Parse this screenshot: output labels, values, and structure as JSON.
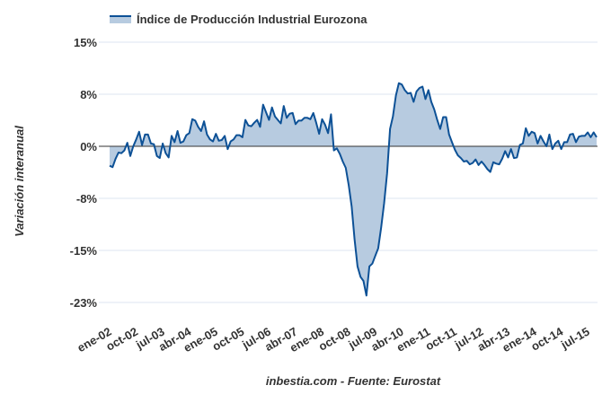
{
  "chart_data": {
    "type": "area",
    "title": "Índice de Producción Industrial Eurozona",
    "legend": [
      "Índice de Producción Industrial Eurozona"
    ],
    "legend_placement": "top-left",
    "ylabel": "Variación interanual",
    "xlabel": "",
    "footer": "inbestia.com - Fuente: Eurostat",
    "ylim": [
      -22.5,
      15
    ],
    "yticks": [
      {
        "value": 15,
        "label": "15%"
      },
      {
        "value": 7.5,
        "label": "8%"
      },
      {
        "value": 0,
        "label": "0%"
      },
      {
        "value": -7.5,
        "label": "-8%"
      },
      {
        "value": -15,
        "label": "-15%"
      },
      {
        "value": -22.5,
        "label": "-23%"
      }
    ],
    "x_start": "ene-02",
    "x_interval": "monthly",
    "xticks": [
      {
        "index": 0,
        "label": "ene-02"
      },
      {
        "index": 9,
        "label": "oct-02"
      },
      {
        "index": 18,
        "label": "jul-03"
      },
      {
        "index": 27,
        "label": "abr-04"
      },
      {
        "index": 36,
        "label": "ene-05"
      },
      {
        "index": 45,
        "label": "oct-05"
      },
      {
        "index": 54,
        "label": "jul-06"
      },
      {
        "index": 63,
        "label": "abr-07"
      },
      {
        "index": 72,
        "label": "ene-08"
      },
      {
        "index": 81,
        "label": "oct-08"
      },
      {
        "index": 90,
        "label": "jul-09"
      },
      {
        "index": 99,
        "label": "abr-10"
      },
      {
        "index": 108,
        "label": "ene-11"
      },
      {
        "index": 117,
        "label": "oct-11"
      },
      {
        "index": 126,
        "label": "jul-12"
      },
      {
        "index": 135,
        "label": "abr-13"
      },
      {
        "index": 144,
        "label": "ene-14"
      },
      {
        "index": 153,
        "label": "oct-14"
      },
      {
        "index": 162,
        "label": "jul-15"
      }
    ],
    "values": [
      -2.8,
      -3.0,
      -1.8,
      -0.9,
      -1.0,
      -0.6,
      0.5,
      -1.4,
      0,
      1.0,
      2.1,
      0.2,
      1.7,
      1.7,
      0.4,
      0.3,
      -1.4,
      -1.7,
      0.4,
      -1.0,
      -1.6,
      1.5,
      0.6,
      2.2,
      0.5,
      0.7,
      1.6,
      1.9,
      3.9,
      3.7,
      2.8,
      2.2,
      3.6,
      1.7,
      1.0,
      0.7,
      1.8,
      0.8,
      0.9,
      1.5,
      -0.4,
      0.7,
      1.0,
      1.6,
      1.6,
      1.3,
      3.8,
      3.0,
      2.9,
      3.4,
      3.8,
      2.8,
      6.0,
      4.9,
      3.8,
      5.6,
      4.3,
      3.8,
      3.3,
      5.8,
      4.1,
      4.7,
      4.8,
      3.2,
      3.7,
      3.7,
      4.1,
      4.1,
      3.9,
      4.8,
      3.4,
      1.8,
      3.9,
      3.1,
      1.9,
      4.6,
      -0.6,
      -0.3,
      -1.1,
      -2.2,
      -3.1,
      -5.6,
      -8.7,
      -13.4,
      -17.3,
      -18.8,
      -19.4,
      -21.5,
      -17.3,
      -16.9,
      -15.8,
      -14.7,
      -11.7,
      -8.2,
      -3.9,
      2.5,
      4.3,
      7.3,
      9.1,
      8.9,
      8.1,
      7.6,
      7.7,
      6.4,
      7.9,
      8.4,
      8.6,
      6.8,
      8.1,
      6.4,
      5.3,
      3.8,
      2.5,
      4.2,
      4.2,
      1.7,
      0.6,
      -0.5,
      -1.3,
      -1.7,
      -2.2,
      -2.1,
      -2.6,
      -2.4,
      -1.9,
      -2.7,
      -2.2,
      -2.7,
      -3.3,
      -3.7,
      -2.3,
      -2.5,
      -2.6,
      -1.8,
      -0.7,
      -1.6,
      -0.4,
      -1.7,
      -1.6,
      0.2,
      0.4,
      2.6,
      1.5,
      2.1,
      1.9,
      0.4,
      1.5,
      0.7,
      0,
      1.7,
      -0.4,
      0.4,
      0.8,
      -0.4,
      0.6,
      0.6,
      1.7,
      1.8,
      0.6,
      1.4,
      1.5,
      1.5,
      2.0,
      1.3,
      2.0,
      1.3
    ],
    "colors": {
      "line": "#0d5196",
      "fill": "#b7cbe0",
      "grid": "#dde6f0",
      "zero": "#333333"
    }
  }
}
